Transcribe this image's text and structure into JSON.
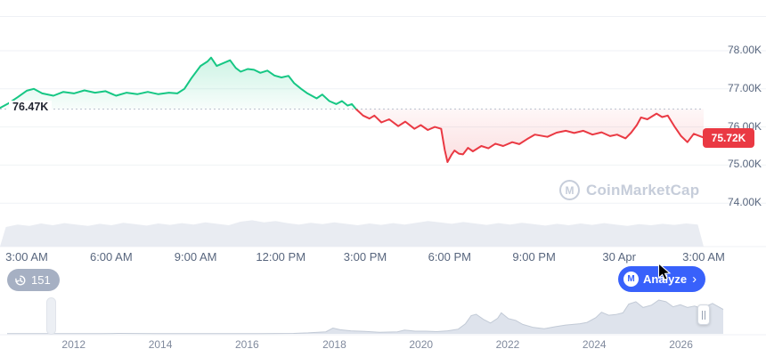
{
  "ui": {
    "history_button": {
      "count": "151"
    },
    "analyze_button": {
      "label": "Analyze",
      "chevron": "›"
    },
    "watermark": {
      "logo_letter": "M",
      "text": "CoinMarketCap"
    },
    "colors": {
      "accent_blue": "#3861fb",
      "up_green": "#16c784",
      "down_red": "#ea3943",
      "pill_gray": "#a6b0c3"
    }
  },
  "chart_data": {
    "type": "line",
    "main": {
      "baseline": 76.47,
      "baseline_label": "76.47K",
      "last_price": 75.72,
      "last_price_label": "75.72K",
      "y_axis": {
        "min": 74,
        "max": 78.3,
        "unit": "K"
      },
      "y_ticks": [
        [
          78,
          "78.00K"
        ],
        [
          77,
          "77.00K"
        ],
        [
          76,
          "76.00K"
        ],
        [
          75,
          "75.00K"
        ],
        [
          74,
          "74.00K"
        ]
      ],
      "x_ticks": [
        [
          0.038,
          "3:00 AM"
        ],
        [
          0.158,
          "6:00 AM"
        ],
        [
          0.278,
          "9:00 AM"
        ],
        [
          0.399,
          "12:00 PM"
        ],
        [
          0.519,
          "3:00 PM"
        ],
        [
          0.639,
          "6:00 PM"
        ],
        [
          0.759,
          "9:00 PM"
        ],
        [
          0.88,
          "30 Apr"
        ],
        [
          1.0,
          "3:00 AM"
        ]
      ],
      "points": [
        [
          0,
          76.5
        ],
        [
          0.012,
          76.62
        ],
        [
          0.025,
          76.78
        ],
        [
          0.038,
          76.95
        ],
        [
          0.048,
          77.0
        ],
        [
          0.06,
          76.88
        ],
        [
          0.076,
          76.82
        ],
        [
          0.09,
          76.92
        ],
        [
          0.105,
          76.88
        ],
        [
          0.12,
          76.96
        ],
        [
          0.135,
          76.9
        ],
        [
          0.15,
          76.94
        ],
        [
          0.165,
          76.82
        ],
        [
          0.18,
          76.9
        ],
        [
          0.195,
          76.86
        ],
        [
          0.21,
          76.92
        ],
        [
          0.225,
          76.86
        ],
        [
          0.24,
          76.9
        ],
        [
          0.252,
          76.88
        ],
        [
          0.262,
          77.0
        ],
        [
          0.272,
          77.28
        ],
        [
          0.285,
          77.6
        ],
        [
          0.295,
          77.72
        ],
        [
          0.3,
          77.82
        ],
        [
          0.308,
          77.6
        ],
        [
          0.318,
          77.68
        ],
        [
          0.327,
          77.75
        ],
        [
          0.335,
          77.55
        ],
        [
          0.342,
          77.45
        ],
        [
          0.352,
          77.52
        ],
        [
          0.361,
          77.5
        ],
        [
          0.37,
          77.42
        ],
        [
          0.38,
          77.48
        ],
        [
          0.39,
          77.35
        ],
        [
          0.4,
          77.3
        ],
        [
          0.41,
          77.34
        ],
        [
          0.418,
          77.15
        ],
        [
          0.428,
          77.0
        ],
        [
          0.437,
          76.88
        ],
        [
          0.45,
          76.75
        ],
        [
          0.458,
          76.85
        ],
        [
          0.468,
          76.68
        ],
        [
          0.478,
          76.6
        ],
        [
          0.486,
          76.68
        ],
        [
          0.494,
          76.56
        ],
        [
          0.5,
          76.6
        ],
        [
          0.506,
          76.47
        ],
        [
          0.516,
          76.3
        ],
        [
          0.525,
          76.22
        ],
        [
          0.532,
          76.3
        ],
        [
          0.542,
          76.12
        ],
        [
          0.553,
          76.2
        ],
        [
          0.566,
          76.02
        ],
        [
          0.576,
          76.14
        ],
        [
          0.589,
          75.95
        ],
        [
          0.598,
          76.05
        ],
        [
          0.608,
          75.92
        ],
        [
          0.618,
          76.0
        ],
        [
          0.627,
          75.95
        ],
        [
          0.632,
          75.4
        ],
        [
          0.636,
          75.08
        ],
        [
          0.642,
          75.28
        ],
        [
          0.646,
          75.38
        ],
        [
          0.652,
          75.3
        ],
        [
          0.658,
          75.28
        ],
        [
          0.665,
          75.45
        ],
        [
          0.672,
          75.36
        ],
        [
          0.684,
          75.5
        ],
        [
          0.694,
          75.44
        ],
        [
          0.704,
          75.56
        ],
        [
          0.715,
          75.5
        ],
        [
          0.728,
          75.6
        ],
        [
          0.738,
          75.55
        ],
        [
          0.749,
          75.68
        ],
        [
          0.76,
          75.8
        ],
        [
          0.778,
          75.74
        ],
        [
          0.791,
          75.85
        ],
        [
          0.804,
          75.9
        ],
        [
          0.816,
          75.84
        ],
        [
          0.829,
          75.9
        ],
        [
          0.842,
          75.8
        ],
        [
          0.855,
          75.86
        ],
        [
          0.867,
          75.76
        ],
        [
          0.877,
          75.8
        ],
        [
          0.889,
          75.7
        ],
        [
          0.897,
          75.85
        ],
        [
          0.905,
          76.05
        ],
        [
          0.911,
          76.25
        ],
        [
          0.92,
          76.2
        ],
        [
          0.933,
          76.35
        ],
        [
          0.941,
          76.26
        ],
        [
          0.949,
          76.3
        ],
        [
          0.959,
          76.0
        ],
        [
          0.968,
          75.76
        ],
        [
          0.977,
          75.6
        ],
        [
          0.986,
          75.82
        ],
        [
          1.0,
          75.72
        ]
      ],
      "volume": [
        0.55,
        0.62,
        0.58,
        0.65,
        0.6,
        0.66,
        0.62,
        0.58,
        0.64,
        0.6,
        0.67,
        0.63,
        0.59,
        0.65,
        0.61,
        0.66,
        0.62,
        0.68,
        0.64,
        0.6,
        0.7,
        0.74,
        0.68,
        0.72,
        0.66,
        0.62,
        0.67,
        0.63,
        0.68,
        0.64,
        0.6,
        0.65,
        0.61,
        0.66,
        0.62,
        0.67,
        0.72,
        0.68,
        0.64,
        0.69,
        0.65,
        0.61,
        0.66,
        0.62,
        0.67,
        0.63,
        0.59,
        0.64,
        0.6,
        0.65,
        0.61,
        0.66,
        0.62,
        0.58,
        0.63,
        0.6,
        0.64,
        0.61,
        0.65,
        0.62
      ],
      "colors": {
        "up": "#16c784",
        "down": "#ea3943",
        "grid": "#eff2f5",
        "baseline": "#bcc3cf",
        "volume": "#e9ecf2"
      }
    },
    "brush": {
      "x_ticks": [
        [
          0.093,
          "2012"
        ],
        [
          0.214,
          "2014"
        ],
        [
          0.335,
          "2016"
        ],
        [
          0.457,
          "2018"
        ],
        [
          0.578,
          "2020"
        ],
        [
          0.699,
          "2022"
        ],
        [
          0.82,
          "2024"
        ],
        [
          0.941,
          "2026"
        ]
      ],
      "points": [
        [
          0,
          0.004
        ],
        [
          0.05,
          0.005
        ],
        [
          0.09,
          0.004
        ],
        [
          0.13,
          0.005
        ],
        [
          0.155,
          0.012
        ],
        [
          0.18,
          0.01
        ],
        [
          0.21,
          0.008
        ],
        [
          0.24,
          0.005
        ],
        [
          0.27,
          0.004
        ],
        [
          0.31,
          0.006
        ],
        [
          0.35,
          0.008
        ],
        [
          0.4,
          0.012
        ],
        [
          0.42,
          0.03
        ],
        [
          0.445,
          0.06
        ],
        [
          0.455,
          0.17
        ],
        [
          0.465,
          0.12
        ],
        [
          0.48,
          0.09
        ],
        [
          0.5,
          0.07
        ],
        [
          0.52,
          0.045
        ],
        [
          0.545,
          0.06
        ],
        [
          0.555,
          0.11
        ],
        [
          0.57,
          0.08
        ],
        [
          0.585,
          0.08
        ],
        [
          0.6,
          0.065
        ],
        [
          0.615,
          0.09
        ],
        [
          0.63,
          0.14
        ],
        [
          0.64,
          0.3
        ],
        [
          0.648,
          0.54
        ],
        [
          0.655,
          0.58
        ],
        [
          0.665,
          0.43
        ],
        [
          0.675,
          0.32
        ],
        [
          0.685,
          0.46
        ],
        [
          0.69,
          0.62
        ],
        [
          0.7,
          0.45
        ],
        [
          0.71,
          0.4
        ],
        [
          0.72,
          0.28
        ],
        [
          0.735,
          0.19
        ],
        [
          0.75,
          0.15
        ],
        [
          0.765,
          0.21
        ],
        [
          0.78,
          0.26
        ],
        [
          0.8,
          0.3
        ],
        [
          0.81,
          0.34
        ],
        [
          0.822,
          0.48
        ],
        [
          0.83,
          0.64
        ],
        [
          0.84,
          0.55
        ],
        [
          0.85,
          0.57
        ],
        [
          0.86,
          0.62
        ],
        [
          0.868,
          0.88
        ],
        [
          0.878,
          0.95
        ],
        [
          0.888,
          0.78
        ],
        [
          0.9,
          0.85
        ],
        [
          0.91,
          1.0
        ],
        [
          0.92,
          0.95
        ],
        [
          0.93,
          0.8
        ],
        [
          0.94,
          0.86
        ],
        [
          0.95,
          0.78
        ],
        [
          0.96,
          0.82
        ],
        [
          0.97,
          0.75
        ],
        [
          0.985,
          0.9
        ],
        [
          1.0,
          0.72
        ]
      ],
      "colors": {
        "fill": "#dee3ec",
        "stroke": "#c2cad6"
      }
    }
  }
}
